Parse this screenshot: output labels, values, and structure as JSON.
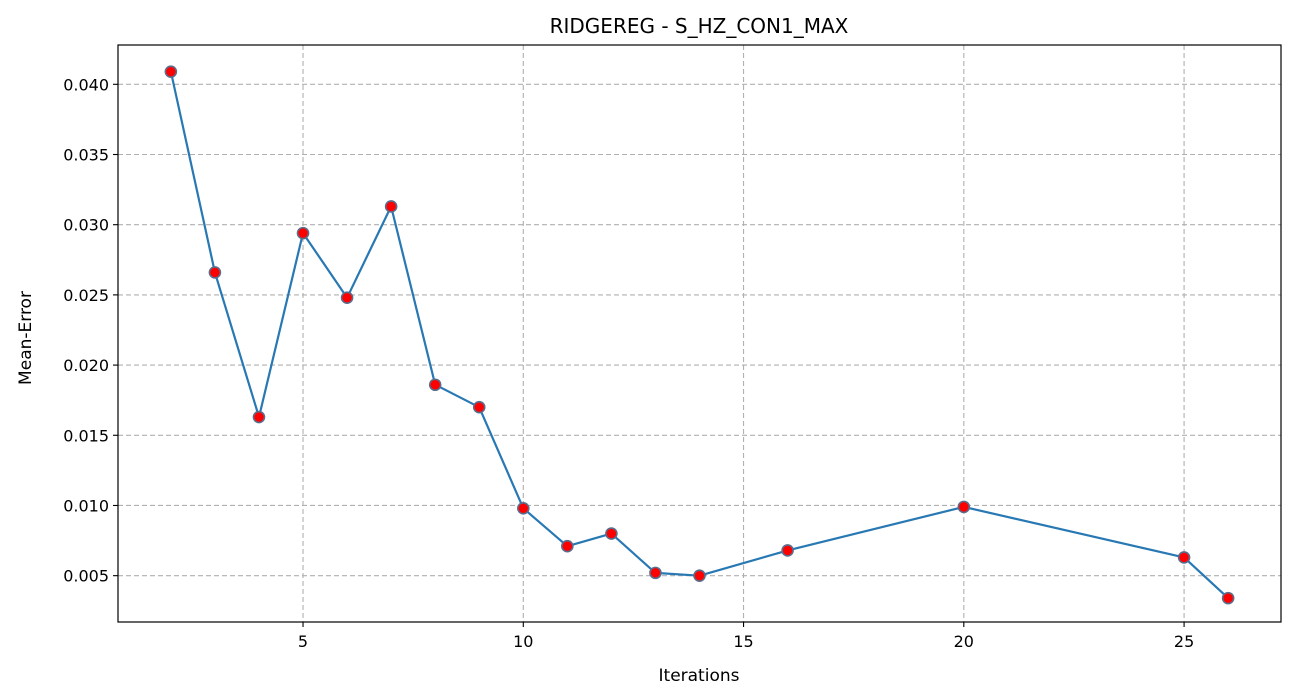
{
  "chart_data": {
    "type": "line",
    "title": "RIDGEREG - S_HZ_CON1_MAX",
    "xlabel": "Iterations",
    "ylabel": "Mean-Error",
    "xlim": [
      0.8,
      27.2
    ],
    "ylim": [
      0.0017,
      0.0428
    ],
    "xticks": [
      5,
      10,
      15,
      20,
      25
    ],
    "yticks": [
      0.005,
      0.01,
      0.015,
      0.02,
      0.025,
      0.03,
      0.035,
      0.04
    ],
    "xtick_labels": [
      "5",
      "10",
      "15",
      "20",
      "25"
    ],
    "ytick_labels": [
      "0.005",
      "0.010",
      "0.015",
      "0.020",
      "0.025",
      "0.030",
      "0.035",
      "0.040"
    ],
    "grid": true,
    "line_color": "#2878b4",
    "marker_face_color": "#ff0000",
    "marker_edge_color": "#5a6e8c",
    "series": [
      {
        "x": [
          2,
          3,
          4,
          5,
          6,
          7,
          8,
          9,
          10,
          11,
          12,
          13,
          14,
          16,
          20,
          25,
          26
        ],
        "y": [
          0.0409,
          0.0266,
          0.0163,
          0.0294,
          0.0248,
          0.0313,
          0.0186,
          0.017,
          0.0098,
          0.0071,
          0.008,
          0.0052,
          0.005,
          0.0068,
          0.0099,
          0.0063,
          0.0034
        ]
      }
    ]
  }
}
